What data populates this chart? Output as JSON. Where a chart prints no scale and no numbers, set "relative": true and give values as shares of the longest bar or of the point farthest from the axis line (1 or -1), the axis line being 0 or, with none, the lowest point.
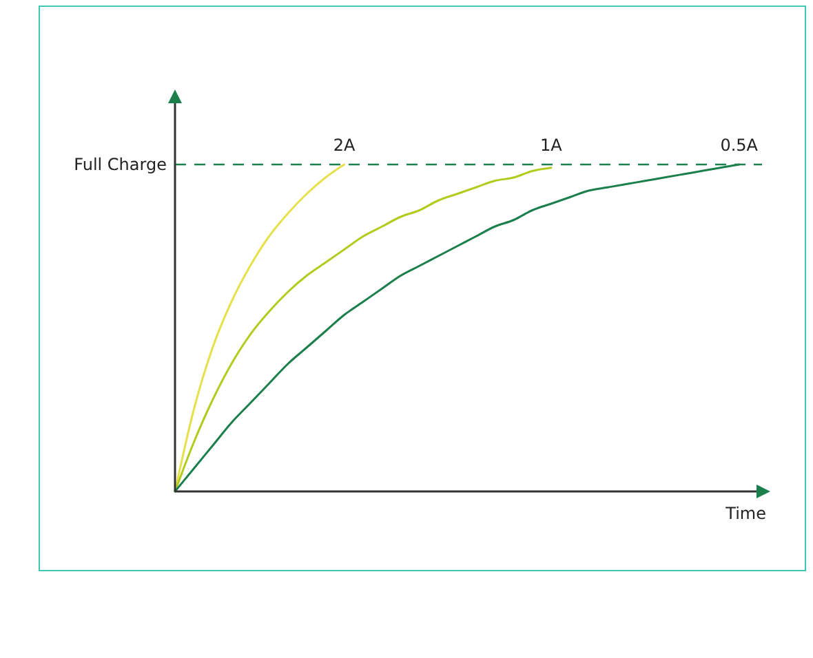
{
  "chart_data": {
    "type": "line",
    "relative": true,
    "xlabel": "Time",
    "categories": [
      null,
      null,
      null,
      null,
      null,
      null,
      null,
      null,
      null,
      null,
      null,
      null,
      null,
      null,
      null,
      null,
      null,
      null,
      null,
      null,
      null,
      null,
      null,
      null,
      null,
      null,
      null,
      null,
      null,
      null,
      null,
      null
    ],
    "series": [
      {
        "name": "2A",
        "color": "#e6e04a",
        "values": [
          0,
          0.25,
          0.44,
          0.58,
          0.69,
          0.78,
          0.85,
          0.91,
          0.96,
          1,
          null,
          null,
          null,
          null,
          null,
          null,
          null,
          null,
          null,
          null,
          null,
          null,
          null,
          null,
          null,
          null,
          null,
          null,
          null,
          null,
          null,
          null
        ]
      },
      {
        "name": "1A",
        "color": "#b3cb1c",
        "values": [
          0,
          0.15,
          0.28,
          0.39,
          0.48,
          0.55,
          0.61,
          0.66,
          0.7,
          0.74,
          0.78,
          0.81,
          0.84,
          0.86,
          0.89,
          0.91,
          0.93,
          0.95,
          0.96,
          0.98,
          0.99,
          null,
          null,
          null,
          null,
          null,
          null,
          null,
          null,
          null,
          null,
          null
        ]
      },
      {
        "name": "0.5A",
        "color": "#1a7f4b",
        "values": [
          0,
          0.07,
          0.14,
          0.21,
          0.27,
          0.33,
          0.39,
          0.44,
          0.49,
          0.54,
          0.58,
          0.62,
          0.66,
          0.69,
          0.72,
          0.75,
          0.78,
          0.81,
          0.83,
          0.86,
          0.88,
          0.9,
          0.92,
          0.93,
          0.94,
          0.95,
          0.96,
          0.97,
          0.98,
          0.99,
          1,
          null
        ]
      }
    ],
    "ref_lines": [
      {
        "axis": "y",
        "value": 1,
        "label": "Full Charge",
        "color": "#1a7f4b",
        "line_style": "dashed"
      }
    ],
    "marker": "none",
    "line_style": "solid"
  }
}
